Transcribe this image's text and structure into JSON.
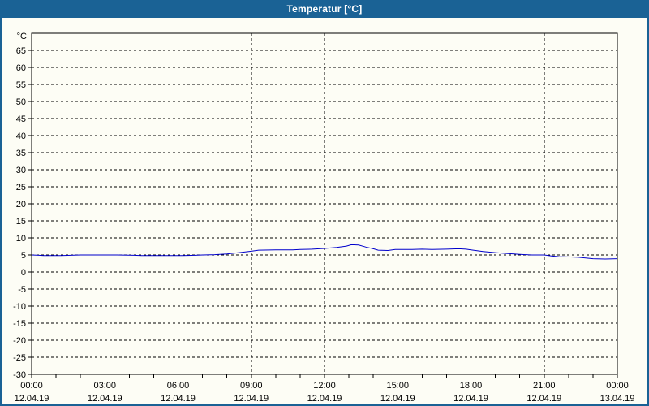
{
  "window": {
    "title": "Temperatur [°C]",
    "titlebar_color": "#1A6295",
    "border_color": "#1A6295",
    "background_color": "#FDFDF5"
  },
  "chart_data": {
    "type": "line",
    "title": "Temperatur [°C]",
    "unit_label": "°C",
    "line_color": "#0000CC",
    "grid": true,
    "gridline_color": "#000000",
    "ylim": [
      -30,
      70
    ],
    "y_gridline_step": 5,
    "y_tick_labels": [
      65,
      60,
      55,
      50,
      45,
      40,
      35,
      30,
      25,
      20,
      15,
      10,
      5,
      0,
      -5,
      -10,
      -15,
      -20,
      -25,
      -30
    ],
    "x_axis": {
      "range_hours": [
        0,
        24
      ],
      "major_step_hours": 3,
      "minor_tick_hours": 1,
      "tick_labels": [
        {
          "time": "00:00",
          "date": "12.04.19"
        },
        {
          "time": "03:00",
          "date": "12.04.19"
        },
        {
          "time": "06:00",
          "date": "12.04.19"
        },
        {
          "time": "09:00",
          "date": "12.04.19"
        },
        {
          "time": "12:00",
          "date": "12.04.19"
        },
        {
          "time": "15:00",
          "date": "12.04.19"
        },
        {
          "time": "18:00",
          "date": "12.04.19"
        },
        {
          "time": "21:00",
          "date": "12.04.19"
        },
        {
          "time": "00:00",
          "date": "13.04.19"
        }
      ]
    },
    "series": [
      {
        "name": "Temperatur",
        "color": "#0000CC",
        "points": [
          [
            0,
            5.0
          ],
          [
            0.3,
            4.9
          ],
          [
            0.5,
            4.8
          ],
          [
            1.2,
            4.8
          ],
          [
            1.6,
            4.9
          ],
          [
            2,
            5.0
          ],
          [
            3.5,
            5.0
          ],
          [
            4.2,
            4.9
          ],
          [
            4.5,
            4.8
          ],
          [
            6.2,
            4.8
          ],
          [
            6.7,
            4.9
          ],
          [
            7,
            5.0
          ],
          [
            7.5,
            5.1
          ],
          [
            8,
            5.3
          ],
          [
            8.5,
            5.7
          ],
          [
            9,
            6.1
          ],
          [
            9.3,
            6.4
          ],
          [
            10,
            6.5
          ],
          [
            10.7,
            6.5
          ],
          [
            11,
            6.6
          ],
          [
            11.5,
            6.7
          ],
          [
            12,
            6.9
          ],
          [
            12.5,
            7.2
          ],
          [
            12.9,
            7.6
          ],
          [
            13.1,
            8.0
          ],
          [
            13.4,
            7.9
          ],
          [
            13.7,
            7.3
          ],
          [
            14,
            6.8
          ],
          [
            14.2,
            6.4
          ],
          [
            14.6,
            6.3
          ],
          [
            14.9,
            6.6
          ],
          [
            15.5,
            6.6
          ],
          [
            16,
            6.7
          ],
          [
            16.4,
            6.6
          ],
          [
            17,
            6.7
          ],
          [
            17.5,
            6.8
          ],
          [
            17.8,
            6.7
          ],
          [
            18,
            6.5
          ],
          [
            18.5,
            6.0
          ],
          [
            19,
            5.7
          ],
          [
            19.5,
            5.4
          ],
          [
            20,
            5.2
          ],
          [
            20.5,
            5.0
          ],
          [
            21,
            5.0
          ],
          [
            21.3,
            4.7
          ],
          [
            21.6,
            4.5
          ],
          [
            22.1,
            4.4
          ],
          [
            22.4,
            4.3
          ],
          [
            22.7,
            4.1
          ],
          [
            23,
            3.9
          ],
          [
            23.5,
            3.8
          ],
          [
            24,
            3.9
          ]
        ]
      }
    ]
  }
}
